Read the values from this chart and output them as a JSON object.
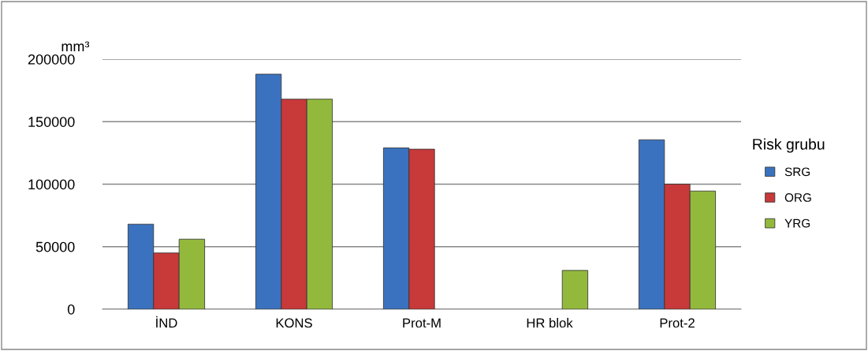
{
  "chart_data": {
    "type": "bar",
    "ylabel": "mm³",
    "legend_title": "Risk grubu",
    "categories": [
      "İND",
      "KONS",
      "Prot-M",
      "HR blok",
      "Prot-2"
    ],
    "series": [
      {
        "name": "SRG",
        "color": "#3a72bf",
        "values": [
          68000,
          188000,
          129000,
          null,
          135500
        ]
      },
      {
        "name": "ORG",
        "color": "#c8393a",
        "values": [
          45000,
          168000,
          128000,
          null,
          100000
        ]
      },
      {
        "name": "YRG",
        "color": "#93b93c",
        "values": [
          56000,
          168000,
          null,
          31000,
          94500
        ]
      }
    ],
    "ylim": [
      0,
      200000
    ],
    "yticks": [
      0,
      50000,
      100000,
      150000,
      200000
    ],
    "grid": "y",
    "legend": "right"
  }
}
